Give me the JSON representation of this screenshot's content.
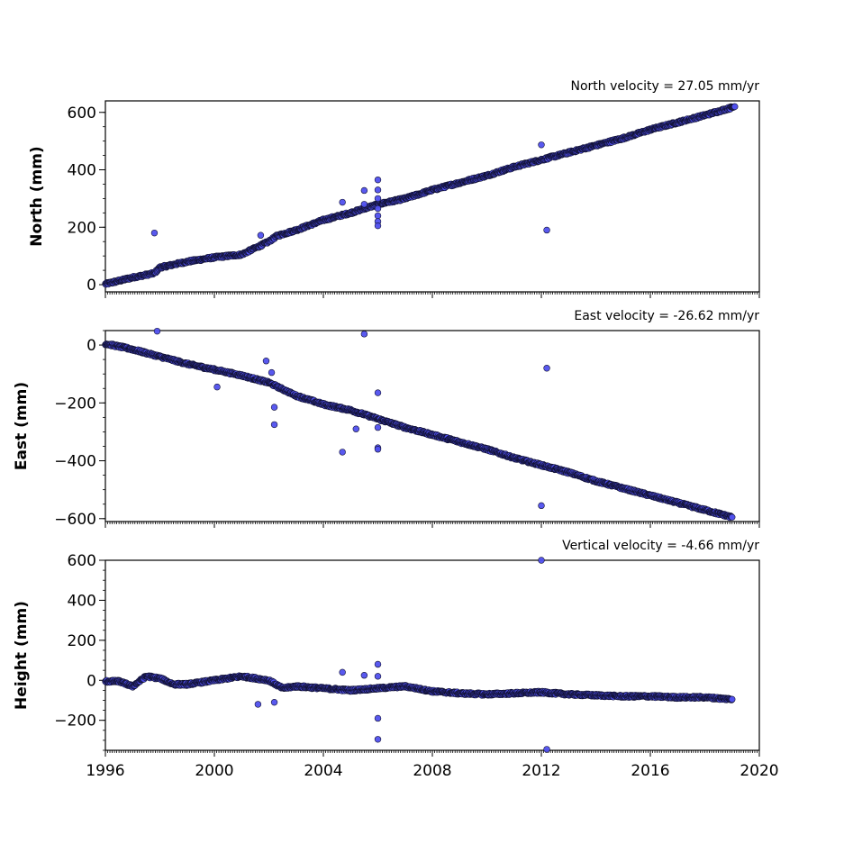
{
  "chart_data": [
    {
      "type": "scatter",
      "title": "North velocity = 27.05 mm/yr",
      "xlabel": "",
      "ylabel": "North (mm)",
      "xlim": [
        1996,
        2020
      ],
      "ylim": [
        -25,
        640
      ],
      "xticks": [
        "1996",
        "2000",
        "2004",
        "2008",
        "2012",
        "2016",
        "2020"
      ],
      "yticks": [
        0,
        200,
        400,
        600
      ],
      "tick_labels": [
        "0",
        "200",
        "400",
        "600"
      ],
      "show_xtick_labels": false,
      "marker_color": "#5050ee",
      "edge_color": "#111133",
      "trend": [
        [
          1996.0,
          2
        ],
        [
          1997.0,
          25
        ],
        [
          1997.8,
          40
        ],
        [
          1998.0,
          60
        ],
        [
          1999.0,
          80
        ],
        [
          2000.0,
          95
        ],
        [
          2001.0,
          105
        ],
        [
          2002.0,
          150
        ],
        [
          2002.3,
          170
        ],
        [
          2003.0,
          190
        ],
        [
          2004.0,
          225
        ],
        [
          2005.0,
          250
        ],
        [
          2006.0,
          280
        ],
        [
          2007.0,
          300
        ],
        [
          2008.0,
          330
        ],
        [
          2009.0,
          355
        ],
        [
          2010.0,
          380
        ],
        [
          2011.0,
          410
        ],
        [
          2012.0,
          435
        ],
        [
          2013.0,
          460
        ],
        [
          2014.0,
          485
        ],
        [
          2015.0,
          510
        ],
        [
          2016.0,
          540
        ],
        [
          2017.0,
          565
        ],
        [
          2018.0,
          590
        ],
        [
          2019.1,
          620
        ]
      ],
      "outliers": [
        [
          1997.8,
          180
        ],
        [
          2001.7,
          172
        ],
        [
          2004.7,
          287
        ],
        [
          2005.5,
          328
        ],
        [
          2005.5,
          280
        ],
        [
          2006.0,
          365
        ],
        [
          2006.0,
          330
        ],
        [
          2006.0,
          300
        ],
        [
          2006.0,
          265
        ],
        [
          2006.0,
          240
        ],
        [
          2006.0,
          220
        ],
        [
          2006.0,
          205
        ],
        [
          2012.0,
          487
        ],
        [
          2012.2,
          190
        ]
      ]
    },
    {
      "type": "scatter",
      "title": "East velocity = -26.62 mm/yr",
      "xlabel": "",
      "ylabel": "East (mm)",
      "xlim": [
        1996,
        2020
      ],
      "ylim": [
        -610,
        50
      ],
      "xticks": [
        "1996",
        "2000",
        "2004",
        "2008",
        "2012",
        "2016",
        "2020"
      ],
      "yticks": [
        -600,
        -400,
        -200,
        0
      ],
      "tick_labels": [
        "−600",
        "−400",
        "−200",
        "0"
      ],
      "show_xtick_labels": false,
      "marker_color": "#5050ee",
      "edge_color": "#111133",
      "trend": [
        [
          1996.0,
          5
        ],
        [
          1996.5,
          -5
        ],
        [
          1997.0,
          -15
        ],
        [
          1998.0,
          -40
        ],
        [
          1999.0,
          -65
        ],
        [
          2000.0,
          -85
        ],
        [
          2001.0,
          -105
        ],
        [
          2002.0,
          -130
        ],
        [
          2003.0,
          -175
        ],
        [
          2004.0,
          -205
        ],
        [
          2005.0,
          -225
        ],
        [
          2006.0,
          -255
        ],
        [
          2007.0,
          -285
        ],
        [
          2008.0,
          -310
        ],
        [
          2009.0,
          -335
        ],
        [
          2010.0,
          -360
        ],
        [
          2011.0,
          -390
        ],
        [
          2012.0,
          -415
        ],
        [
          2013.0,
          -440
        ],
        [
          2014.0,
          -470
        ],
        [
          2015.0,
          -495
        ],
        [
          2016.0,
          -520
        ],
        [
          2017.0,
          -545
        ],
        [
          2018.0,
          -570
        ],
        [
          2019.0,
          -595
        ]
      ],
      "outliers": [
        [
          1997.9,
          48
        ],
        [
          2000.1,
          -145
        ],
        [
          2001.9,
          -55
        ],
        [
          2002.1,
          -95
        ],
        [
          2002.2,
          -215
        ],
        [
          2002.2,
          -275
        ],
        [
          2004.7,
          -370
        ],
        [
          2005.2,
          -290
        ],
        [
          2005.5,
          38
        ],
        [
          2006.0,
          -165
        ],
        [
          2006.0,
          -355
        ],
        [
          2006.0,
          -360
        ],
        [
          2006.0,
          -285
        ],
        [
          2012.0,
          -555
        ],
        [
          2012.2,
          -80
        ]
      ]
    },
    {
      "type": "scatter",
      "title": "Vertical velocity = -4.66 mm/yr",
      "xlabel": "",
      "ylabel": "Height (mm)",
      "xlim": [
        1996,
        2020
      ],
      "ylim": [
        -350,
        600
      ],
      "xticks": [
        "1996",
        "2000",
        "2004",
        "2008",
        "2012",
        "2016",
        "2020"
      ],
      "yticks": [
        -200,
        0,
        200,
        400,
        600
      ],
      "tick_labels": [
        "−200",
        "0",
        "200",
        "400",
        "600"
      ],
      "show_xtick_labels": true,
      "marker_color": "#5050ee",
      "edge_color": "#111133",
      "trend": [
        [
          1996.0,
          -5
        ],
        [
          1996.5,
          -5
        ],
        [
          1997.0,
          -30
        ],
        [
          1997.5,
          20
        ],
        [
          1998.0,
          10
        ],
        [
          1998.5,
          -20
        ],
        [
          1999.0,
          -20
        ],
        [
          2000.0,
          0
        ],
        [
          2001.0,
          20
        ],
        [
          2002.0,
          0
        ],
        [
          2002.5,
          -40
        ],
        [
          2003.0,
          -30
        ],
        [
          2004.0,
          -40
        ],
        [
          2005.0,
          -50
        ],
        [
          2006.0,
          -40
        ],
        [
          2007.0,
          -30
        ],
        [
          2008.0,
          -55
        ],
        [
          2009.0,
          -65
        ],
        [
          2010.0,
          -70
        ],
        [
          2011.0,
          -65
        ],
        [
          2012.0,
          -60
        ],
        [
          2013.0,
          -70
        ],
        [
          2014.0,
          -75
        ],
        [
          2015.0,
          -80
        ],
        [
          2016.0,
          -80
        ],
        [
          2017.0,
          -85
        ],
        [
          2018.0,
          -85
        ],
        [
          2019.0,
          -95
        ]
      ],
      "outliers": [
        [
          2001.6,
          -120
        ],
        [
          2002.2,
          -110
        ],
        [
          2004.7,
          40
        ],
        [
          2005.5,
          25
        ],
        [
          2006.0,
          80
        ],
        [
          2006.0,
          20
        ],
        [
          2006.0,
          -190
        ],
        [
          2006.0,
          -295
        ],
        [
          2012.0,
          600
        ],
        [
          2012.2,
          -345
        ]
      ]
    }
  ]
}
